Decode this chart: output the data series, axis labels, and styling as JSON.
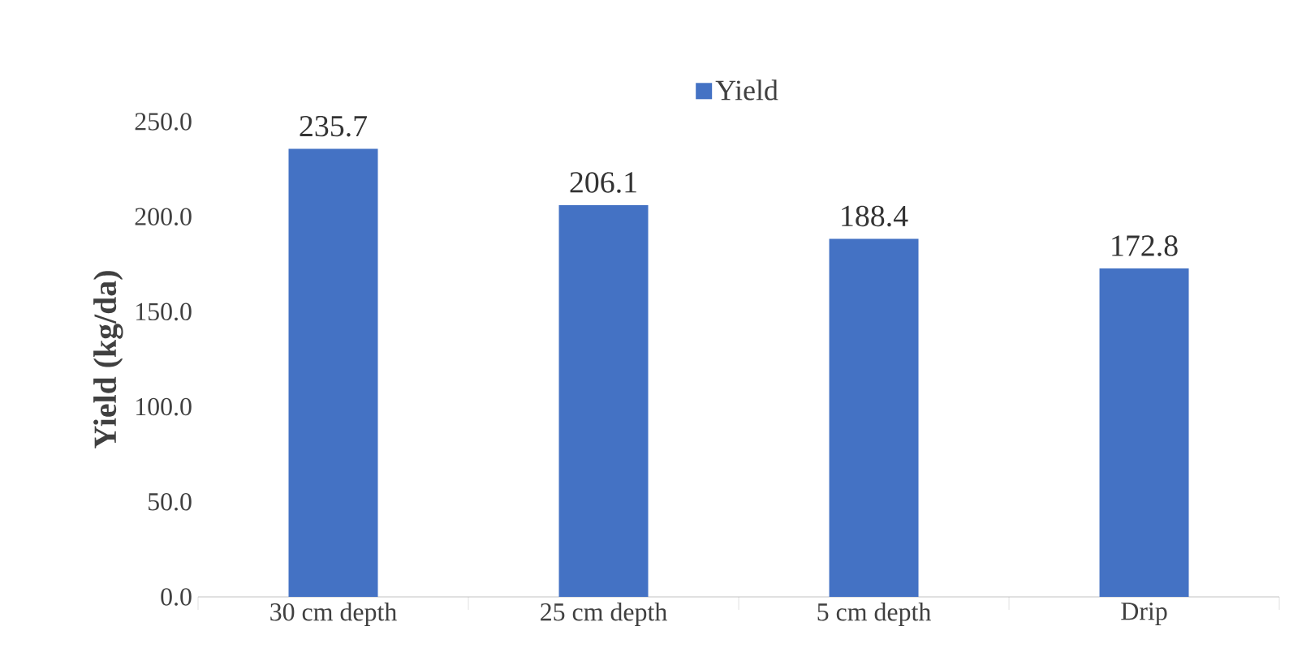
{
  "chart_data": {
    "type": "bar",
    "ylabel": "Yield (kg/da)",
    "categories": [
      "30 cm depth",
      "25 cm depth",
      "5 cm depth",
      "Drip"
    ],
    "series": [
      {
        "name": "Yield",
        "color": "#4472c4",
        "values": [
          235.7,
          206.1,
          188.4,
          172.8
        ]
      }
    ],
    "ylim": [
      0,
      250
    ],
    "yticks": [
      {
        "value": 0,
        "label": "0.0"
      },
      {
        "value": 50,
        "label": "50.0"
      },
      {
        "value": 100,
        "label": "100.0"
      },
      {
        "value": 150,
        "label": "150.0"
      },
      {
        "value": 200,
        "label": "200.0"
      },
      {
        "value": 250,
        "label": "250.0"
      }
    ],
    "data_labels": true,
    "legend": "top",
    "grid": false
  }
}
